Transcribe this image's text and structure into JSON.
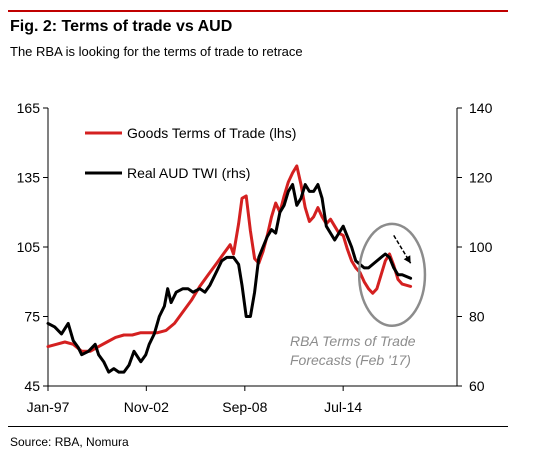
{
  "header": {
    "title": "Fig. 2: Terms of trade vs AUD",
    "subtitle": "The RBA is looking for the terms of trade to retrace"
  },
  "footer": {
    "source": "Source: RBA, Nomura"
  },
  "chart_data": {
    "type": "line",
    "title": "Fig. 2: Terms of trade vs AUD",
    "subtitle": "The RBA is looking for the terms of trade to retrace",
    "x_range": [
      1997.0,
      2021.25
    ],
    "x_ticks": [
      {
        "x": 1997.0,
        "label": "Jan-97"
      },
      {
        "x": 2002.83,
        "label": "Nov-02"
      },
      {
        "x": 2008.67,
        "label": "Sep-08"
      },
      {
        "x": 2014.5,
        "label": "Jul-14"
      }
    ],
    "y_left": {
      "range": [
        45,
        165
      ],
      "ticks": [
        "45",
        "75",
        "105",
        "135",
        "165"
      ]
    },
    "y_right": {
      "range": [
        60,
        140
      ],
      "ticks": [
        "60",
        "80",
        "100",
        "120",
        "140"
      ]
    },
    "legend_position": "top-left",
    "grid": false,
    "series": [
      {
        "name": "Goods Terms of Trade (lhs)",
        "axis": "left",
        "color": "#d42020",
        "points": [
          [
            1997.0,
            62
          ],
          [
            1997.5,
            63
          ],
          [
            1998.0,
            64
          ],
          [
            1998.5,
            63
          ],
          [
            1999.0,
            60
          ],
          [
            1999.5,
            60
          ],
          [
            2000.0,
            62
          ],
          [
            2000.5,
            64
          ],
          [
            2001.0,
            66
          ],
          [
            2001.5,
            67
          ],
          [
            2002.0,
            67
          ],
          [
            2002.5,
            68
          ],
          [
            2003.0,
            68
          ],
          [
            2003.5,
            68
          ],
          [
            2004.0,
            69
          ],
          [
            2004.5,
            72
          ],
          [
            2005.0,
            77
          ],
          [
            2005.5,
            82
          ],
          [
            2006.0,
            88
          ],
          [
            2006.5,
            93
          ],
          [
            2007.0,
            98
          ],
          [
            2007.5,
            103
          ],
          [
            2007.8,
            106
          ],
          [
            2008.0,
            102
          ],
          [
            2008.3,
            115
          ],
          [
            2008.5,
            126
          ],
          [
            2008.75,
            127
          ],
          [
            2009.0,
            112
          ],
          [
            2009.25,
            100
          ],
          [
            2009.5,
            98
          ],
          [
            2009.75,
            103
          ],
          [
            2010.0,
            110
          ],
          [
            2010.25,
            118
          ],
          [
            2010.5,
            124
          ],
          [
            2010.75,
            120
          ],
          [
            2011.0,
            127
          ],
          [
            2011.25,
            133
          ],
          [
            2011.5,
            137
          ],
          [
            2011.75,
            140
          ],
          [
            2012.0,
            132
          ],
          [
            2012.25,
            122
          ],
          [
            2012.5,
            116
          ],
          [
            2012.75,
            118
          ],
          [
            2013.0,
            122
          ],
          [
            2013.25,
            118
          ],
          [
            2013.5,
            115
          ],
          [
            2013.75,
            117
          ],
          [
            2014.0,
            114
          ],
          [
            2014.25,
            111
          ],
          [
            2014.5,
            110
          ],
          [
            2014.75,
            104
          ],
          [
            2015.0,
            99
          ],
          [
            2015.25,
            96
          ],
          [
            2015.5,
            94
          ],
          [
            2015.75,
            90
          ],
          [
            2016.0,
            87
          ],
          [
            2016.25,
            85
          ],
          [
            2016.5,
            87
          ],
          [
            2016.75,
            93
          ],
          [
            2017.0,
            99
          ],
          [
            2017.25,
            102
          ],
          [
            2017.5,
            97
          ],
          [
            2017.75,
            91
          ],
          [
            2018.0,
            89
          ],
          [
            2018.5,
            88
          ]
        ]
      },
      {
        "name": "Real AUD TWI (rhs)",
        "axis": "right",
        "color": "#000000",
        "points": [
          [
            1997.0,
            78
          ],
          [
            1997.4,
            77
          ],
          [
            1997.8,
            75
          ],
          [
            1998.2,
            78
          ],
          [
            1998.5,
            73
          ],
          [
            1998.8,
            71
          ],
          [
            1999.0,
            69
          ],
          [
            1999.4,
            70
          ],
          [
            1999.8,
            72
          ],
          [
            2000.0,
            69
          ],
          [
            2000.3,
            67
          ],
          [
            2000.6,
            64
          ],
          [
            2000.9,
            65
          ],
          [
            2001.2,
            64
          ],
          [
            2001.5,
            64
          ],
          [
            2001.8,
            66
          ],
          [
            2002.1,
            70
          ],
          [
            2002.5,
            67
          ],
          [
            2002.8,
            69
          ],
          [
            2003.0,
            72
          ],
          [
            2003.3,
            75
          ],
          [
            2003.6,
            80
          ],
          [
            2003.9,
            83
          ],
          [
            2004.1,
            88
          ],
          [
            2004.3,
            84
          ],
          [
            2004.6,
            87
          ],
          [
            2005.0,
            88
          ],
          [
            2005.3,
            88
          ],
          [
            2005.6,
            87
          ],
          [
            2006.0,
            88
          ],
          [
            2006.3,
            87
          ],
          [
            2006.6,
            89
          ],
          [
            2007.0,
            93
          ],
          [
            2007.3,
            96
          ],
          [
            2007.6,
            97
          ],
          [
            2008.0,
            97
          ],
          [
            2008.3,
            95
          ],
          [
            2008.5,
            89
          ],
          [
            2008.75,
            80
          ],
          [
            2009.0,
            80
          ],
          [
            2009.25,
            87
          ],
          [
            2009.5,
            97
          ],
          [
            2009.75,
            100
          ],
          [
            2010.0,
            103
          ],
          [
            2010.25,
            105
          ],
          [
            2010.5,
            104
          ],
          [
            2010.75,
            110
          ],
          [
            2011.0,
            112
          ],
          [
            2011.25,
            116
          ],
          [
            2011.5,
            118
          ],
          [
            2011.75,
            112
          ],
          [
            2012.0,
            114
          ],
          [
            2012.25,
            118
          ],
          [
            2012.5,
            116
          ],
          [
            2012.75,
            116
          ],
          [
            2013.0,
            118
          ],
          [
            2013.25,
            114
          ],
          [
            2013.5,
            106
          ],
          [
            2013.75,
            104
          ],
          [
            2014.0,
            102
          ],
          [
            2014.25,
            104
          ],
          [
            2014.5,
            106
          ],
          [
            2014.75,
            103
          ],
          [
            2015.0,
            100
          ],
          [
            2015.25,
            96
          ],
          [
            2015.5,
            95
          ],
          [
            2015.75,
            94
          ],
          [
            2016.0,
            94
          ],
          [
            2016.25,
            95
          ],
          [
            2016.5,
            96
          ],
          [
            2016.75,
            97
          ],
          [
            2017.0,
            98
          ],
          [
            2017.25,
            97
          ],
          [
            2017.5,
            94
          ],
          [
            2017.75,
            92
          ],
          [
            2018.0,
            92
          ],
          [
            2018.5,
            91
          ]
        ]
      }
    ],
    "annotation": {
      "lines": [
        "RBA Terms of Trade",
        "Forecasts (Feb '17)"
      ],
      "color": "#8c8c8c",
      "highlight_circle": {
        "x_center": 2017.4,
        "y_center_left": 93,
        "x_radius": 1.95,
        "y_radius_left": 22
      },
      "arrow": {
        "from": [
          2017.5,
          110
        ],
        "to": [
          2018.5,
          98
        ],
        "axis": "left"
      }
    }
  }
}
